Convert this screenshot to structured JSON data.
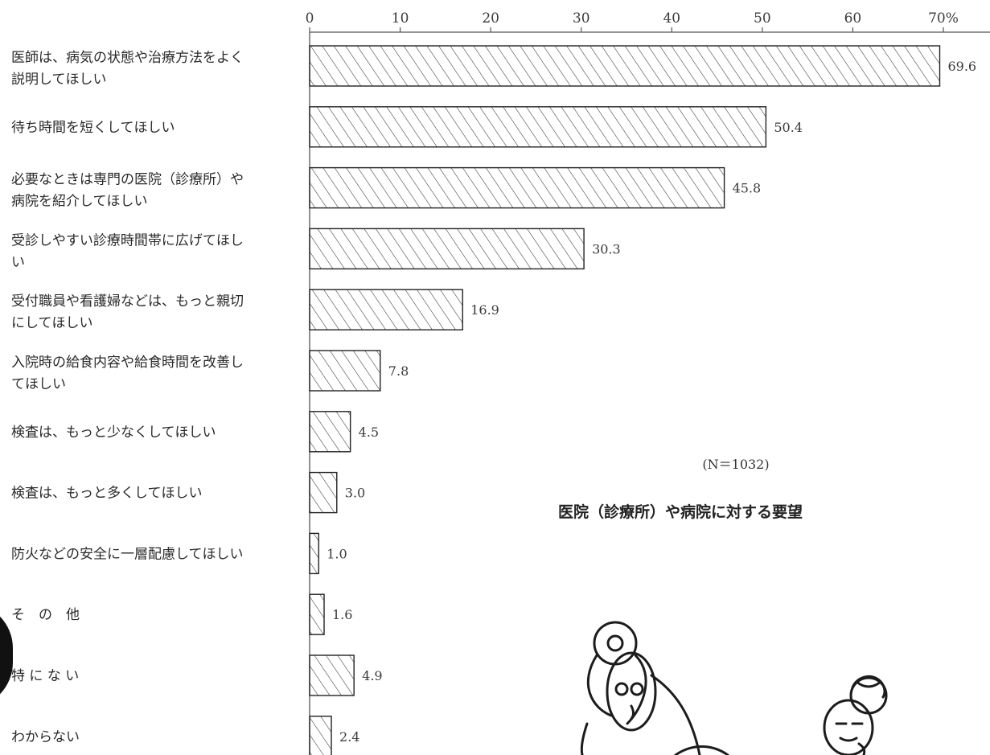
{
  "chart_data": {
    "type": "bar",
    "orientation": "horizontal",
    "title": "医院（診療所）や病院に対する要望",
    "note": "(N＝1032)",
    "unit": "%",
    "xlim": [
      0,
      70
    ],
    "ticks": [
      0,
      10,
      20,
      30,
      40,
      50,
      60,
      70
    ],
    "tick_labels": [
      "0",
      "10",
      "20",
      "30",
      "40",
      "50",
      "60",
      "70%"
    ],
    "categories": [
      [
        "医師は、病気の状態や治療方法をよく",
        "説明してほしい"
      ],
      [
        "待ち時間を短くしてほしい"
      ],
      [
        "必要なときは専門の医院（診療所）や",
        "病院を紹介してほしい"
      ],
      [
        "受診しやすい診療時間帯に広げてほし",
        "い"
      ],
      [
        "受付職員や看護婦などは、もっと親切",
        "にしてほしい"
      ],
      [
        "入院時の給食内容や給食時間を改善し",
        "てほしい"
      ],
      [
        "検査は、もっと少なくしてほしい"
      ],
      [
        "検査は、もっと多くしてほしい"
      ],
      [
        "防火などの安全に一層配慮してほしい"
      ],
      [
        "そ　の　他"
      ],
      [
        "特 に な い"
      ],
      [
        "わからない"
      ]
    ],
    "values": [
      69.6,
      50.4,
      45.8,
      30.3,
      16.9,
      7.8,
      4.5,
      3.0,
      1.0,
      1.6,
      4.9,
      2.4
    ],
    "value_labels": [
      "69.6",
      "50.4",
      "45.8",
      "30.3",
      "16.9",
      "7.8",
      "4.5",
      "3.0",
      "1.0",
      "1.6",
      "4.9",
      "2.4"
    ],
    "bar_fill": "diagonal-hatch",
    "grid": false
  }
}
